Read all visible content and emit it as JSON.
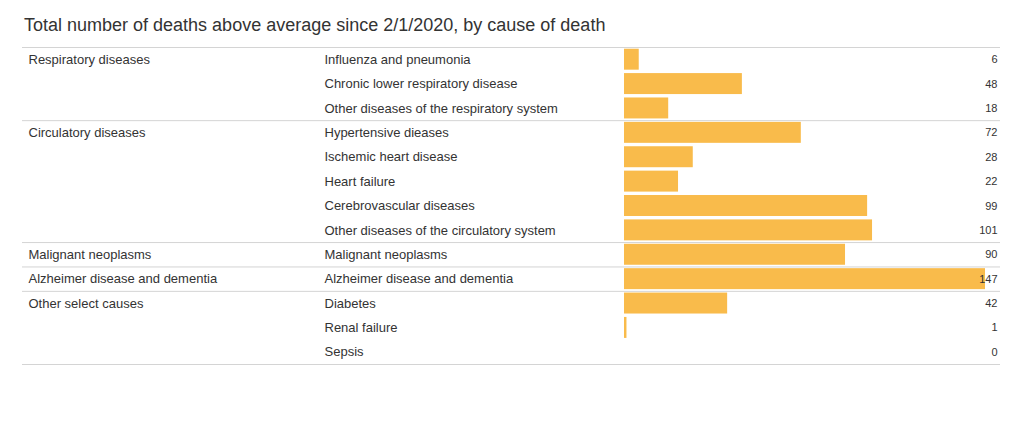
{
  "chart_data": {
    "type": "bar",
    "orientation": "horizontal",
    "title": "Total number of deaths above average since 2/1/2020, by cause of death",
    "color": "#f9bb4b",
    "data_labels": true,
    "tick_labels": "y",
    "xlim": [
      0,
      147
    ],
    "groups": [
      {
        "name": "Respiratory diseases",
        "categories": [
          "Influenza and pneumonia",
          "Chronic lower respiratory disease",
          "Other diseases of the respiratory system"
        ],
        "values": [
          6,
          48,
          18
        ]
      },
      {
        "name": "Circulatory diseases",
        "categories": [
          "Hypertensive dieases",
          "Ischemic heart disease",
          "Heart failure",
          "Cerebrovascular diseases",
          "Other diseases of the circulatory system"
        ],
        "values": [
          72,
          28,
          22,
          99,
          101
        ]
      },
      {
        "name": "Malignant neoplasms",
        "categories": [
          "Malignant neoplasms"
        ],
        "values": [
          90
        ]
      },
      {
        "name": "Alzheimer disease and dementia",
        "categories": [
          "Alzheimer disease and dementia"
        ],
        "values": [
          147
        ]
      },
      {
        "name": "Other select causes",
        "categories": [
          "Diabetes",
          "Renal failure",
          "Sepsis"
        ],
        "values": [
          42,
          1,
          0
        ]
      }
    ]
  }
}
